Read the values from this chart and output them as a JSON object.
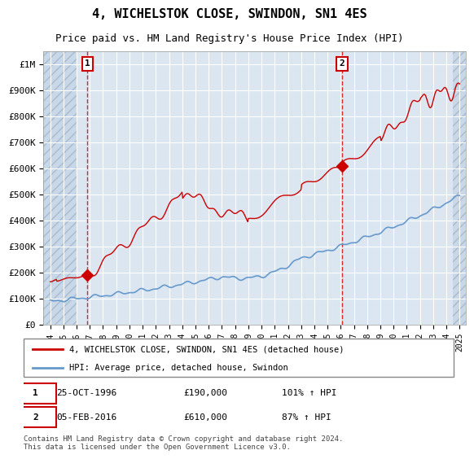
{
  "title": "4, WICHELSTOK CLOSE, SWINDON, SN1 4ES",
  "subtitle": "Price paid vs. HM Land Registry's House Price Index (HPI)",
  "title_fontsize": 11,
  "subtitle_fontsize": 9,
  "ylabel_ticks": [
    "£0",
    "£100K",
    "£200K",
    "£300K",
    "£400K",
    "£500K",
    "£600K",
    "£700K",
    "£800K",
    "£900K",
    "£1M"
  ],
  "ytick_values": [
    0,
    100000,
    200000,
    300000,
    400000,
    500000,
    600000,
    700000,
    800000,
    900000,
    1000000
  ],
  "ylim": [
    0,
    1050000
  ],
  "xlim_start": 1993.5,
  "xlim_end": 2025.5,
  "xtick_years": [
    1994,
    1995,
    1996,
    1997,
    1998,
    1999,
    2000,
    2001,
    2002,
    2003,
    2004,
    2005,
    2006,
    2007,
    2008,
    2009,
    2010,
    2011,
    2012,
    2013,
    2014,
    2015,
    2016,
    2017,
    2018,
    2019,
    2020,
    2021,
    2022,
    2023,
    2024,
    2025
  ],
  "sale1_x": 1996.82,
  "sale1_y": 190000,
  "sale1_label": "1",
  "sale1_date": "25-OCT-1996",
  "sale1_price": "£190,000",
  "sale1_hpi": "101% ↑ HPI",
  "sale2_x": 2016.09,
  "sale2_y": 610000,
  "sale2_label": "2",
  "sale2_date": "05-FEB-2016",
  "sale2_price": "£610,000",
  "sale2_hpi": "87% ↑ HPI",
  "red_line_color": "#cc0000",
  "blue_line_color": "#6699cc",
  "background_plot": "#dce6f1",
  "background_hatch": "#c8d8e8",
  "grid_color": "#ffffff",
  "legend_line1": "4, WICHELSTOK CLOSE, SWINDON, SN1 4ES (detached house)",
  "legend_line2": "HPI: Average price, detached house, Swindon",
  "footer": "Contains HM Land Registry data © Crown copyright and database right 2024.\nThis data is licensed under the Open Government Licence v3.0.",
  "marker_box_color": "#cc0000",
  "dashed_line_color": "#cc0000"
}
